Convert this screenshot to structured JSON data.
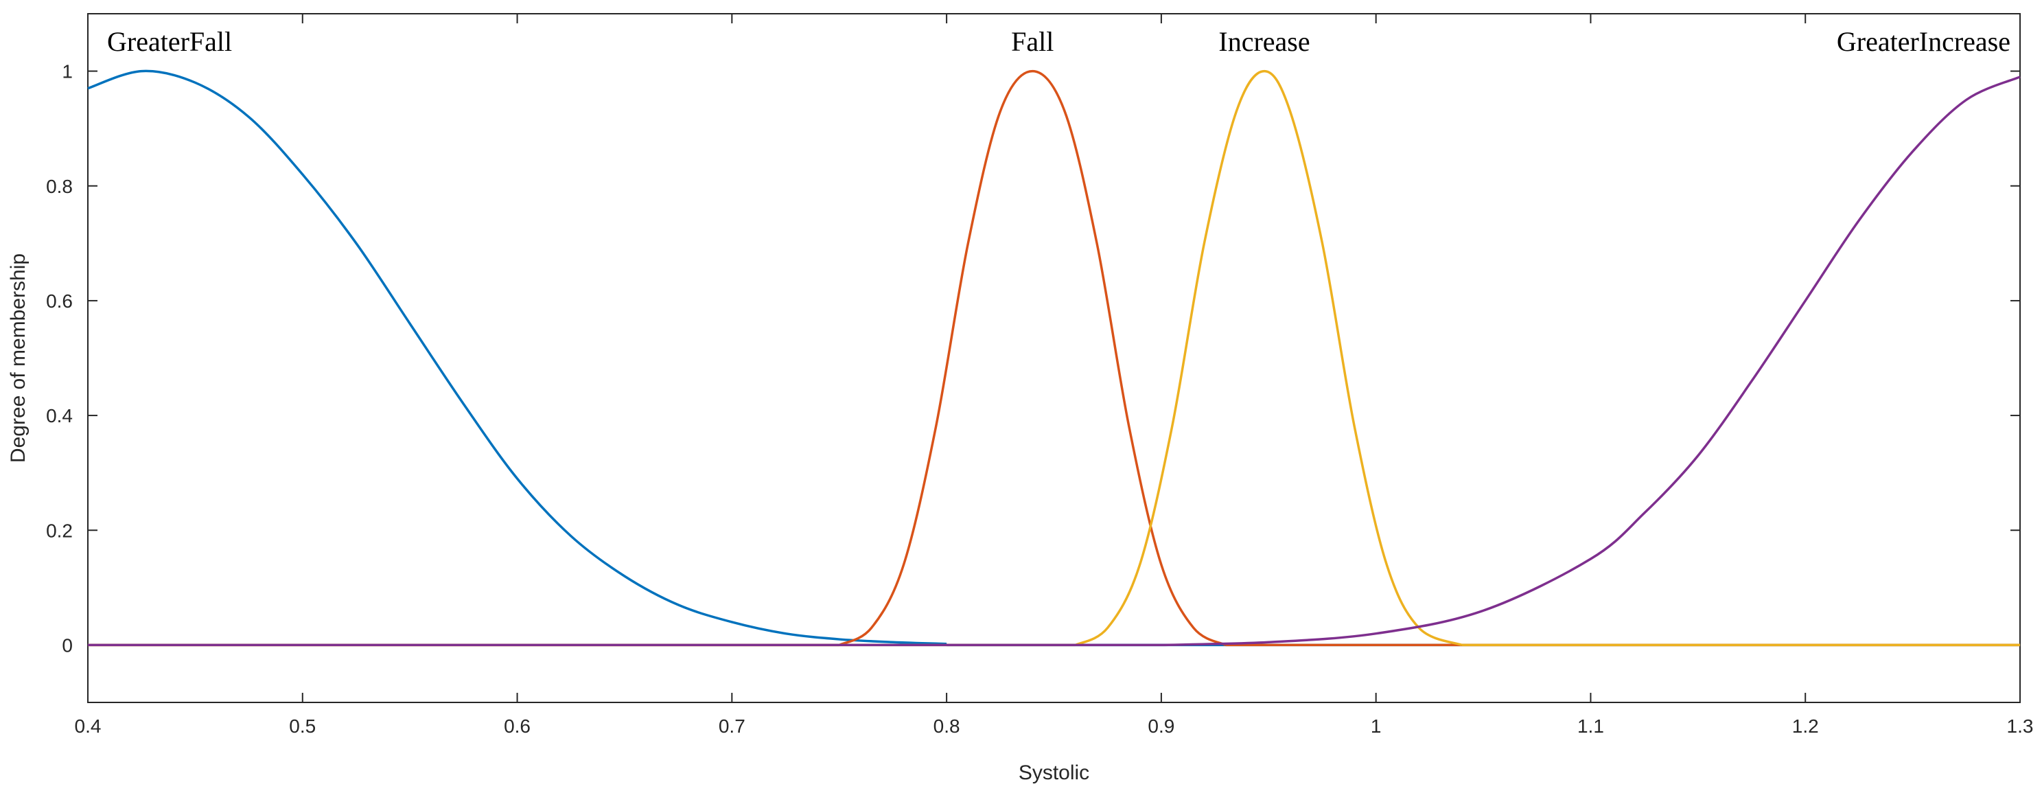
{
  "chart_data": {
    "type": "line",
    "xlabel": "Systolic",
    "ylabel": "Degree of membership",
    "xlim": [
      0.4,
      1.3
    ],
    "ylim": [
      -0.1,
      1.1
    ],
    "xticks": [
      0.4,
      0.5,
      0.6,
      0.7,
      0.8,
      0.9,
      1,
      1.1,
      1.2,
      1.3
    ],
    "xtick_labels": [
      "0.4",
      "0.5",
      "0.6",
      "0.7",
      "0.8",
      "0.9",
      "1",
      "1.1",
      "1.2",
      "1.3"
    ],
    "yticks": [
      0,
      0.2,
      0.4,
      0.6,
      0.8,
      1
    ],
    "ytick_labels": [
      "0",
      "0.2",
      "0.4",
      "0.6",
      "0.8",
      "1"
    ],
    "grid": false,
    "legend": "none",
    "series": [
      {
        "name": "GreaterFall",
        "color": "#0072BD",
        "x": [
          0.4,
          0.425,
          0.45,
          0.475,
          0.5,
          0.525,
          0.55,
          0.575,
          0.6,
          0.625,
          0.65,
          0.675,
          0.7,
          0.725,
          0.75,
          0.775,
          0.8
        ],
        "y": [
          0.97,
          1.0,
          0.98,
          0.92,
          0.82,
          0.7,
          0.56,
          0.42,
          0.29,
          0.19,
          0.12,
          0.07,
          0.04,
          0.02,
          0.01,
          0.005,
          0.002
        ]
      },
      {
        "name": "Fall",
        "color": "#D95319",
        "x": [
          0.75,
          0.765,
          0.78,
          0.795,
          0.81,
          0.825,
          0.84,
          0.855,
          0.87,
          0.885,
          0.9,
          0.915,
          0.93
        ],
        "y": [
          0.0,
          0.03,
          0.14,
          0.38,
          0.7,
          0.93,
          1.0,
          0.93,
          0.7,
          0.38,
          0.14,
          0.03,
          0.0
        ]
      },
      {
        "name": "Increase",
        "color": "#EDB120",
        "x": [
          0.86,
          0.875,
          0.89,
          0.905,
          0.92,
          0.935,
          0.948,
          0.96,
          0.975,
          0.99,
          1.005,
          1.02,
          1.04
        ],
        "y": [
          0.0,
          0.03,
          0.14,
          0.38,
          0.7,
          0.93,
          1.0,
          0.93,
          0.7,
          0.38,
          0.14,
          0.03,
          0.0
        ]
      },
      {
        "name": "GreaterIncrease",
        "color": "#7E2F8E",
        "x": [
          0.9,
          0.95,
          1.0,
          1.05,
          1.1,
          1.125,
          1.15,
          1.175,
          1.2,
          1.225,
          1.25,
          1.275,
          1.3
        ],
        "y": [
          0.0,
          0.005,
          0.02,
          0.06,
          0.15,
          0.23,
          0.33,
          0.46,
          0.6,
          0.74,
          0.86,
          0.95,
          0.99
        ]
      }
    ],
    "annotations": [
      {
        "text": "GreaterFall",
        "x": 0.425,
        "y": 1.05
      },
      {
        "text": "Fall",
        "x": 0.84,
        "y": 1.05
      },
      {
        "text": "Increase",
        "x": 0.948,
        "y": 1.05
      },
      {
        "text": "GreaterIncrease",
        "x": 1.25,
        "y": 1.05
      }
    ]
  }
}
